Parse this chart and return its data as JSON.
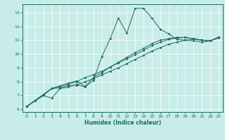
{
  "title": "",
  "xlabel": "Humidex (Indice chaleur)",
  "background_color": "#c8ede8",
  "line_color": "#1a6b5e",
  "xlim": [
    -0.5,
    23.5
  ],
  "ylim": [
    5.8,
    13.6
  ],
  "xticks": [
    0,
    1,
    2,
    3,
    4,
    5,
    6,
    7,
    8,
    9,
    10,
    11,
    12,
    13,
    14,
    15,
    16,
    17,
    18,
    19,
    20,
    21,
    22,
    23
  ],
  "yticks": [
    6,
    7,
    8,
    9,
    10,
    11,
    12,
    13
  ],
  "line1_x": [
    0,
    1,
    2,
    3,
    4,
    5,
    6,
    7,
    8,
    9,
    10,
    11,
    12,
    13,
    14,
    15,
    16,
    17,
    18,
    19,
    20,
    21,
    22,
    23
  ],
  "line1_y": [
    6.2,
    6.6,
    7.0,
    6.8,
    7.5,
    7.6,
    7.8,
    7.6,
    8.1,
    9.8,
    11.1,
    12.6,
    11.5,
    13.3,
    13.3,
    12.6,
    11.8,
    11.45,
    11.05,
    11.0,
    10.95,
    10.85,
    10.95,
    11.2
  ],
  "line2_x": [
    0,
    2,
    3,
    4,
    5,
    6,
    7,
    8,
    9,
    10,
    11,
    12,
    13,
    14,
    15,
    16,
    17,
    18,
    19,
    20,
    21,
    22,
    23
  ],
  "line2_y": [
    6.2,
    7.0,
    7.5,
    7.55,
    7.7,
    7.75,
    8.0,
    8.2,
    8.5,
    8.75,
    9.0,
    9.3,
    9.6,
    9.9,
    10.2,
    10.45,
    10.7,
    10.85,
    11.0,
    11.05,
    11.0,
    10.95,
    11.15
  ],
  "line3_x": [
    0,
    3,
    4,
    5,
    6,
    7,
    8,
    9,
    10,
    11,
    12,
    13,
    14,
    15,
    16,
    17,
    18,
    19,
    20,
    21,
    22,
    23
  ],
  "line3_y": [
    6.2,
    7.5,
    7.65,
    7.8,
    8.0,
    8.3,
    8.5,
    8.75,
    9.05,
    9.35,
    9.65,
    9.95,
    10.25,
    10.6,
    10.85,
    11.05,
    11.15,
    11.2,
    11.1,
    11.0,
    10.95,
    11.2
  ],
  "line4_x": [
    0,
    3,
    5,
    6,
    7,
    8,
    9,
    10,
    11,
    12,
    13,
    14,
    15,
    16,
    17,
    18,
    19,
    20,
    21,
    22,
    23
  ],
  "line4_y": [
    6.2,
    7.5,
    7.9,
    8.05,
    7.65,
    8.3,
    8.65,
    9.05,
    9.4,
    9.75,
    10.1,
    10.4,
    10.75,
    11.0,
    11.1,
    11.2,
    11.2,
    11.1,
    11.0,
    10.95,
    11.2
  ]
}
